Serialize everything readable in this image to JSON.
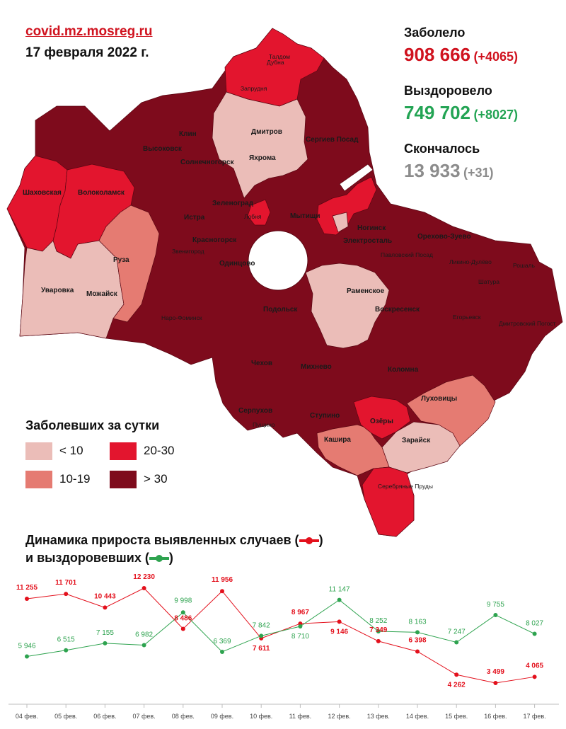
{
  "header": {
    "site": "covid.mz.mosreg.ru",
    "date": "17 февраля 2022 г."
  },
  "stats": {
    "infected": {
      "label": "Заболело",
      "value": "908 666",
      "delta": "(+4065)",
      "color": "#d0131f"
    },
    "recovered": {
      "label": "Выздоровело",
      "value": "749 702",
      "delta": "(+8027)",
      "color": "#23a454"
    },
    "died": {
      "label": "Скончалось",
      "value": "13 933",
      "delta": "(+31)",
      "color": "#8c8c8c"
    }
  },
  "legend": {
    "title": "Заболевших за сутки",
    "items": [
      {
        "label": "< 10",
        "color": "#ebbdb8"
      },
      {
        "label": "20-30",
        "color": "#e3152e"
      },
      {
        "label": "10-19",
        "color": "#e57b72"
      },
      {
        "label": "> 30",
        "color": "#7e0b1c"
      }
    ]
  },
  "colors": {
    "very_light": "#ebbdb8",
    "light": "#e57b72",
    "red": "#e3152e",
    "dark": "#7e0b1c",
    "border": "#5a0612"
  },
  "map": {
    "labels": [
      "Дубна",
      "Талдом",
      "Запрудня",
      "Дмитров",
      "Яхрома",
      "Сергиев Посад",
      "Клин",
      "Высоковск",
      "Солнечногорск",
      "Шаховская",
      "Волоколамск",
      "Зеленоград",
      "Лобня",
      "Мытищи",
      "Истра",
      "Красногорск",
      "Ногинск",
      "Электросталь",
      "Орехово-Зуево",
      "Павловский Посад",
      "Ликино-Дулёво",
      "Звенигород",
      "Одинцово",
      "Руза",
      "Раменское",
      "Уваровка",
      "Можайск",
      "Шатура",
      "Рошаль",
      "Наро-Фоминск",
      "Подольск",
      "Воскресенск",
      "Егорьевск",
      "Дмитровский Погост",
      "Чехов",
      "Михнево",
      "Коломна",
      "Серпухов",
      "Ступино",
      "Луховицы",
      "Пущино",
      "Озёры",
      "Кашира",
      "Зарайск",
      "Серебряные Пруды"
    ]
  },
  "dynamics": {
    "title_line1": "Динамика прироста выявленных случаев (",
    "title_line1_end": ")",
    "title_line2": "и выздоровевших (",
    "title_line2_end": ")"
  },
  "chart_data": {
    "type": "line",
    "categories": [
      "04 фев.",
      "05 фев.",
      "06 фев.",
      "07 фев.",
      "08 фев.",
      "09 фев.",
      "10 фев.",
      "11 фев.",
      "12 фев.",
      "13 фев.",
      "14 фев.",
      "15 фев.",
      "16 фев.",
      "17 фев."
    ],
    "series": [
      {
        "color": "#e3101c",
        "values": [
          11255,
          11701,
          10443,
          12230,
          8486,
          11956,
          7611,
          8967,
          9146,
          7349,
          6398,
          4262,
          3499,
          4065
        ],
        "labels": [
          "11 255",
          "11 701",
          "10 443",
          "12 230",
          "8 486",
          "11 956",
          "7 611",
          "8 967",
          "9 146",
          "7 349",
          "6 398",
          "4 262",
          "3 499",
          "4 065"
        ]
      },
      {
        "color": "#2ea34f",
        "values": [
          5946,
          6515,
          7155,
          6982,
          9998,
          6369,
          7842,
          8710,
          11147,
          8252,
          8163,
          7247,
          9755,
          8027
        ],
        "labels": [
          "5 946",
          "6 515",
          "7 155",
          "6 982",
          "9 998",
          "6 369",
          "7 842",
          "8 710",
          "11 147",
          "8 252",
          "8 163",
          "7 247",
          "9 755",
          "8 027"
        ]
      }
    ]
  }
}
